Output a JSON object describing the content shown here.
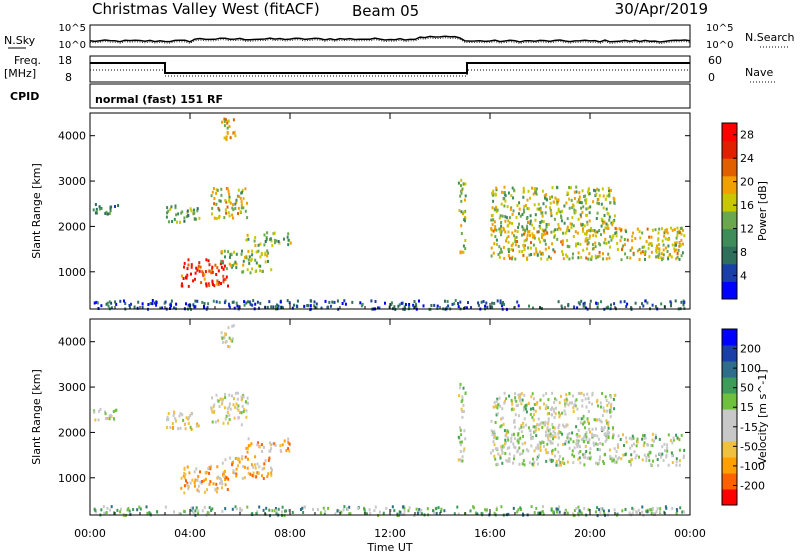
{
  "header": {
    "station": "Christmas Valley West (fitACF)",
    "beam": "Beam 05",
    "date": "30/Apr/2019"
  },
  "noise_panel": {
    "left_label": "N.Sky",
    "right_label": "N.Search",
    "left_ticks": [
      "10^5",
      "10^0"
    ],
    "right_ticks": [
      "10^5",
      "10^0"
    ]
  },
  "freq_panel": {
    "left_label_1": "Freq.",
    "left_label_2": "[MHz]",
    "right_label": "Nave",
    "left_ticks": [
      "18",
      "8"
    ],
    "right_ticks": [
      "60",
      "0"
    ]
  },
  "cpid": {
    "label": "CPID",
    "text": "normal (fast) 151 RF"
  },
  "colors": {
    "power": [
      "#0000ff",
      "#1a3fa6",
      "#2e6e5a",
      "#3d8c5a",
      "#6aa84f",
      "#c8c800",
      "#f0a000",
      "#e06000",
      "#e02000",
      "#ff0000"
    ],
    "velocity": [
      "#ff0000",
      "#ff6000",
      "#ffa000",
      "#f0c040",
      "#c8c8c8",
      "#c8c8c8",
      "#70c040",
      "#3d9c5a",
      "#2e6e8a",
      "#1a3fa6",
      "#0000ff"
    ]
  },
  "chart_data": [
    {
      "type": "heatmap",
      "name": "power",
      "ylabel": "Slant Range [km]",
      "xlabel": "Time UT",
      "xlim": [
        0,
        24
      ],
      "ylim": [
        180,
        4500
      ],
      "x_ticks": [
        "00:00",
        "04:00",
        "08:00",
        "12:00",
        "16:00",
        "20:00",
        "00:00"
      ],
      "y_ticks": [
        1000,
        2000,
        3000,
        4000
      ],
      "colorbar": {
        "label": "Power [dB]",
        "ticks": [
          4,
          8,
          12,
          16,
          20,
          24,
          28
        ],
        "range": [
          0,
          30
        ]
      },
      "regions": [
        {
          "t0": 0.1,
          "t1": 1.1,
          "r0": 2300,
          "r1": 2550,
          "level": 0.35
        },
        {
          "t0": 3.0,
          "t1": 4.4,
          "r0": 2100,
          "r1": 2500,
          "level": 0.4
        },
        {
          "t0": 4.8,
          "t1": 6.3,
          "r0": 2200,
          "r1": 2900,
          "level": 0.55
        },
        {
          "t0": 3.6,
          "t1": 5.5,
          "r0": 700,
          "r1": 1300,
          "level": 0.85
        },
        {
          "t0": 5.2,
          "t1": 7.3,
          "r0": 1000,
          "r1": 1500,
          "level": 0.5
        },
        {
          "t0": 6.2,
          "t1": 8.0,
          "r0": 1600,
          "r1": 1900,
          "level": 0.45
        },
        {
          "t0": 5.2,
          "t1": 5.8,
          "r0": 3900,
          "r1": 4400,
          "level": 0.6
        },
        {
          "t0": 14.7,
          "t1": 15.0,
          "r0": 1400,
          "r1": 3100,
          "level": 0.5
        },
        {
          "t0": 16.0,
          "t1": 21.0,
          "r0": 1900,
          "r1": 2900,
          "level": 0.5
        },
        {
          "t0": 16.0,
          "t1": 23.8,
          "r0": 1300,
          "r1": 2000,
          "level": 0.55
        },
        {
          "t0": 0.1,
          "t1": 23.8,
          "r0": 200,
          "r1": 400,
          "level": 0.2
        }
      ]
    },
    {
      "type": "heatmap",
      "name": "velocity",
      "ylabel": "Slant Range [km]",
      "xlabel": "Time UT",
      "xlim": [
        0,
        24
      ],
      "ylim": [
        180,
        4500
      ],
      "x_ticks": [
        "00:00",
        "04:00",
        "08:00",
        "12:00",
        "16:00",
        "20:00",
        "00:00"
      ],
      "y_ticks": [
        1000,
        2000,
        3000,
        4000
      ],
      "colorbar": {
        "label": "Velocity [m s^-1]",
        "ticks": [
          -200,
          -100,
          -50,
          -15,
          15,
          50,
          100,
          200
        ],
        "range": [
          -250,
          250
        ]
      },
      "regions": [
        {
          "t0": 0.1,
          "t1": 1.1,
          "r0": 2300,
          "r1": 2550,
          "level": 0.45
        },
        {
          "t0": 3.0,
          "t1": 4.4,
          "r0": 2100,
          "r1": 2500,
          "level": 0.4
        },
        {
          "t0": 4.8,
          "t1": 6.3,
          "r0": 2200,
          "r1": 2900,
          "level": 0.45
        },
        {
          "t0": 3.6,
          "t1": 5.5,
          "r0": 700,
          "r1": 1300,
          "level": 0.28
        },
        {
          "t0": 5.2,
          "t1": 7.3,
          "r0": 1000,
          "r1": 1500,
          "level": 0.3
        },
        {
          "t0": 6.2,
          "t1": 8.0,
          "r0": 1600,
          "r1": 1900,
          "level": 0.3
        },
        {
          "t0": 5.2,
          "t1": 5.8,
          "r0": 3900,
          "r1": 4400,
          "level": 0.45
        },
        {
          "t0": 14.7,
          "t1": 15.0,
          "r0": 1400,
          "r1": 3100,
          "level": 0.5
        },
        {
          "t0": 16.0,
          "t1": 21.0,
          "r0": 1900,
          "r1": 2900,
          "level": 0.48
        },
        {
          "t0": 16.0,
          "t1": 23.8,
          "r0": 1300,
          "r1": 2000,
          "level": 0.5
        },
        {
          "t0": 0.1,
          "t1": 23.8,
          "r0": 200,
          "r1": 400,
          "level": 0.62
        }
      ]
    }
  ]
}
